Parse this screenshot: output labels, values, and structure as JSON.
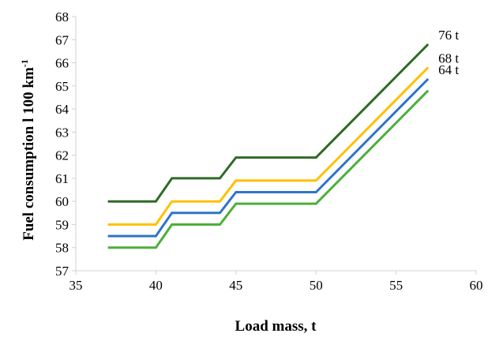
{
  "chart_data": {
    "type": "line",
    "title": "",
    "xlabel": "Load mass, t",
    "ylabel": "Fuel consumption l 100 km",
    "ylabel_superscript": "-1",
    "xlim": [
      35,
      60
    ],
    "ylim": [
      57,
      68
    ],
    "x_ticks": [
      "35",
      "40",
      "45",
      "50",
      "55",
      "60"
    ],
    "y_ticks": [
      "57",
      "58",
      "59",
      "60",
      "61",
      "62",
      "63",
      "64",
      "65",
      "66",
      "67",
      "68"
    ],
    "grid": false,
    "legend": "direct labels at line ends",
    "series": [
      {
        "name": "76 t",
        "color": "#2e6b24",
        "points": [
          [
            37,
            60.0
          ],
          [
            40,
            60.0
          ],
          [
            41,
            61.0
          ],
          [
            44,
            61.0
          ],
          [
            45,
            61.9
          ],
          [
            50,
            61.9
          ],
          [
            57,
            66.8
          ]
        ]
      },
      {
        "name": "68 t",
        "color": "#ffc000",
        "points": [
          [
            37,
            59.0
          ],
          [
            40,
            59.0
          ],
          [
            41,
            60.0
          ],
          [
            44,
            60.0
          ],
          [
            45,
            60.9
          ],
          [
            50,
            60.9
          ],
          [
            57,
            65.8
          ]
        ]
      },
      {
        "name": "64 t",
        "color": "#2e75c6",
        "points": [
          [
            37,
            58.5
          ],
          [
            40,
            58.5
          ],
          [
            41,
            59.5
          ],
          [
            44,
            59.5
          ],
          [
            45,
            60.4
          ],
          [
            50,
            60.4
          ],
          [
            57,
            65.3
          ]
        ]
      },
      {
        "name": "",
        "color": "#4caf3a",
        "points": [
          [
            37,
            58.0
          ],
          [
            40,
            58.0
          ],
          [
            41,
            59.0
          ],
          [
            44,
            59.0
          ],
          [
            45,
            59.9
          ],
          [
            50,
            59.9
          ],
          [
            57,
            64.8
          ]
        ]
      }
    ]
  }
}
